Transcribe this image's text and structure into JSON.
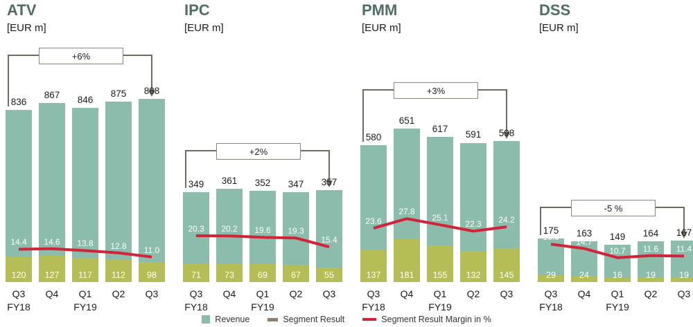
{
  "colors": {
    "revenue_bar": "#8cbcab",
    "segment_bar": "#b4bd56",
    "margin_line": "#d2233a",
    "title_text": "#4f6e62",
    "bracket": "#6f6a61",
    "text": "#1a1a1a"
  },
  "legend": [
    {
      "label": "Revenue",
      "marker": "square",
      "color": "#8cbcab"
    },
    {
      "label": "Segment Result",
      "marker": "dash",
      "color": "#8a8075"
    },
    {
      "label": "Segment Result Margin in %",
      "marker": "line",
      "color": "#d2233a"
    }
  ],
  "chart_data": [
    {
      "type": "bar",
      "title": "ATV",
      "subtitle": "[EUR m]",
      "categories": [
        "Q3",
        "Q4",
        "Q1",
        "Q2",
        "Q3"
      ],
      "fiscal_labels": [
        {
          "index": 0,
          "label": "FY18"
        },
        {
          "index": 2,
          "label": "FY19"
        }
      ],
      "series": [
        {
          "name": "Revenue",
          "values": [
            836,
            867,
            846,
            875,
            888
          ]
        },
        {
          "name": "Segment Result",
          "values": [
            120,
            127,
            117,
            112,
            98
          ]
        },
        {
          "name": "Segment Result Margin in %",
          "values": [
            14.4,
            14.6,
            13.8,
            12.8,
            11.0
          ]
        }
      ],
      "annotation": "+6%",
      "layout": {
        "max_bar_height": 265,
        "bracket_y": 80
      }
    },
    {
      "type": "bar",
      "title": "IPC",
      "subtitle": "[EUR m]",
      "categories": [
        "Q3",
        "Q4",
        "Q1",
        "Q2",
        "Q3"
      ],
      "fiscal_labels": [
        {
          "index": 0,
          "label": "FY18"
        },
        {
          "index": 2,
          "label": "FY19"
        }
      ],
      "series": [
        {
          "name": "Revenue",
          "values": [
            349,
            361,
            352,
            347,
            357
          ]
        },
        {
          "name": "Segment Result",
          "values": [
            71,
            73,
            69,
            67,
            55
          ]
        },
        {
          "name": "Segment Result Margin in %",
          "values": [
            20.3,
            20.2,
            19.6,
            19.3,
            15.4
          ]
        }
      ],
      "annotation": "+2%",
      "layout": {
        "max_bar_height": 135,
        "bracket_y": 218
      }
    },
    {
      "type": "bar",
      "title": "PMM",
      "subtitle": "[EUR m]",
      "categories": [
        "Q3",
        "Q4",
        "Q1",
        "Q2",
        "Q3"
      ],
      "fiscal_labels": [
        {
          "index": 0,
          "label": "FY18"
        },
        {
          "index": 2,
          "label": "FY19"
        }
      ],
      "series": [
        {
          "name": "Revenue",
          "values": [
            580,
            651,
            617,
            591,
            598
          ]
        },
        {
          "name": "Segment Result",
          "values": [
            137,
            181,
            155,
            132,
            145
          ]
        },
        {
          "name": "Segment Result Margin in %",
          "values": [
            23.6,
            27.8,
            25.1,
            22.3,
            24.2
          ]
        }
      ],
      "annotation": "+3%",
      "layout": {
        "max_bar_height": 222,
        "bracket_y": 130
      }
    },
    {
      "type": "bar",
      "title": "DSS",
      "subtitle": "[EUR m]",
      "categories": [
        "Q3",
        "Q4",
        "Q1",
        "Q2",
        "Q3"
      ],
      "fiscal_labels": [
        {
          "index": 0,
          "label": "FY18"
        },
        {
          "index": 2,
          "label": "FY19"
        }
      ],
      "series": [
        {
          "name": "Revenue",
          "values": [
            175,
            163,
            149,
            164,
            167
          ]
        },
        {
          "name": "Segment Result",
          "values": [
            29,
            24,
            16,
            19,
            19
          ]
        },
        {
          "name": "Segment Result Margin in %",
          "values": [
            16.6,
            14.7,
            10.7,
            11.6,
            11.4
          ]
        }
      ],
      "annotation": "-5 %",
      "layout": {
        "max_bar_height": 63,
        "bracket_y": 300
      }
    }
  ]
}
